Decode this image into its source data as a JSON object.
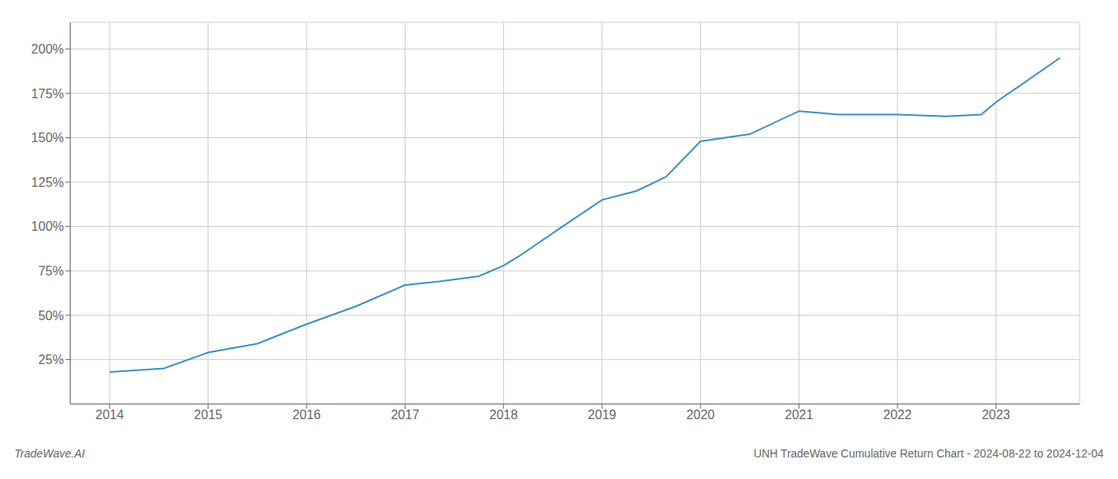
{
  "chart_data": {
    "type": "line",
    "title": "UNH TradeWave Cumulative Return Chart - 2024-08-22 to 2024-12-04",
    "annotations": [
      "TradeWave.AI"
    ],
    "x": [
      2014.0,
      2014.55,
      2015.0,
      2015.5,
      2016.0,
      2016.5,
      2017.0,
      2017.35,
      2017.75,
      2018.0,
      2018.15,
      2018.6,
      2019.0,
      2019.35,
      2019.65,
      2020.0,
      2020.5,
      2021.0,
      2021.4,
      2022.0,
      2022.5,
      2022.85,
      2023.0,
      2023.65
    ],
    "values": [
      18,
      20,
      29,
      34,
      45,
      55,
      67,
      69,
      72,
      78,
      83,
      100,
      115,
      120,
      128,
      148,
      152,
      165,
      163,
      163,
      162,
      163,
      170,
      195
    ],
    "color": "#3a8fc7",
    "xlim": [
      2013.6,
      2023.85
    ],
    "xticks": [
      2014,
      2015,
      2016,
      2017,
      2018,
      2019,
      2020,
      2021,
      2022,
      2023
    ],
    "ylim": [
      0,
      215
    ],
    "yticks": [
      {
        "value": 25,
        "label": "25%"
      },
      {
        "value": 50,
        "label": "50%"
      },
      {
        "value": 75,
        "label": "75%"
      },
      {
        "value": 100,
        "label": "100%"
      },
      {
        "value": 125,
        "label": "125%"
      },
      {
        "value": 150,
        "label": "150%"
      },
      {
        "value": 175,
        "label": "175%"
      },
      {
        "value": 200,
        "label": "200%"
      }
    ],
    "grid": true
  }
}
